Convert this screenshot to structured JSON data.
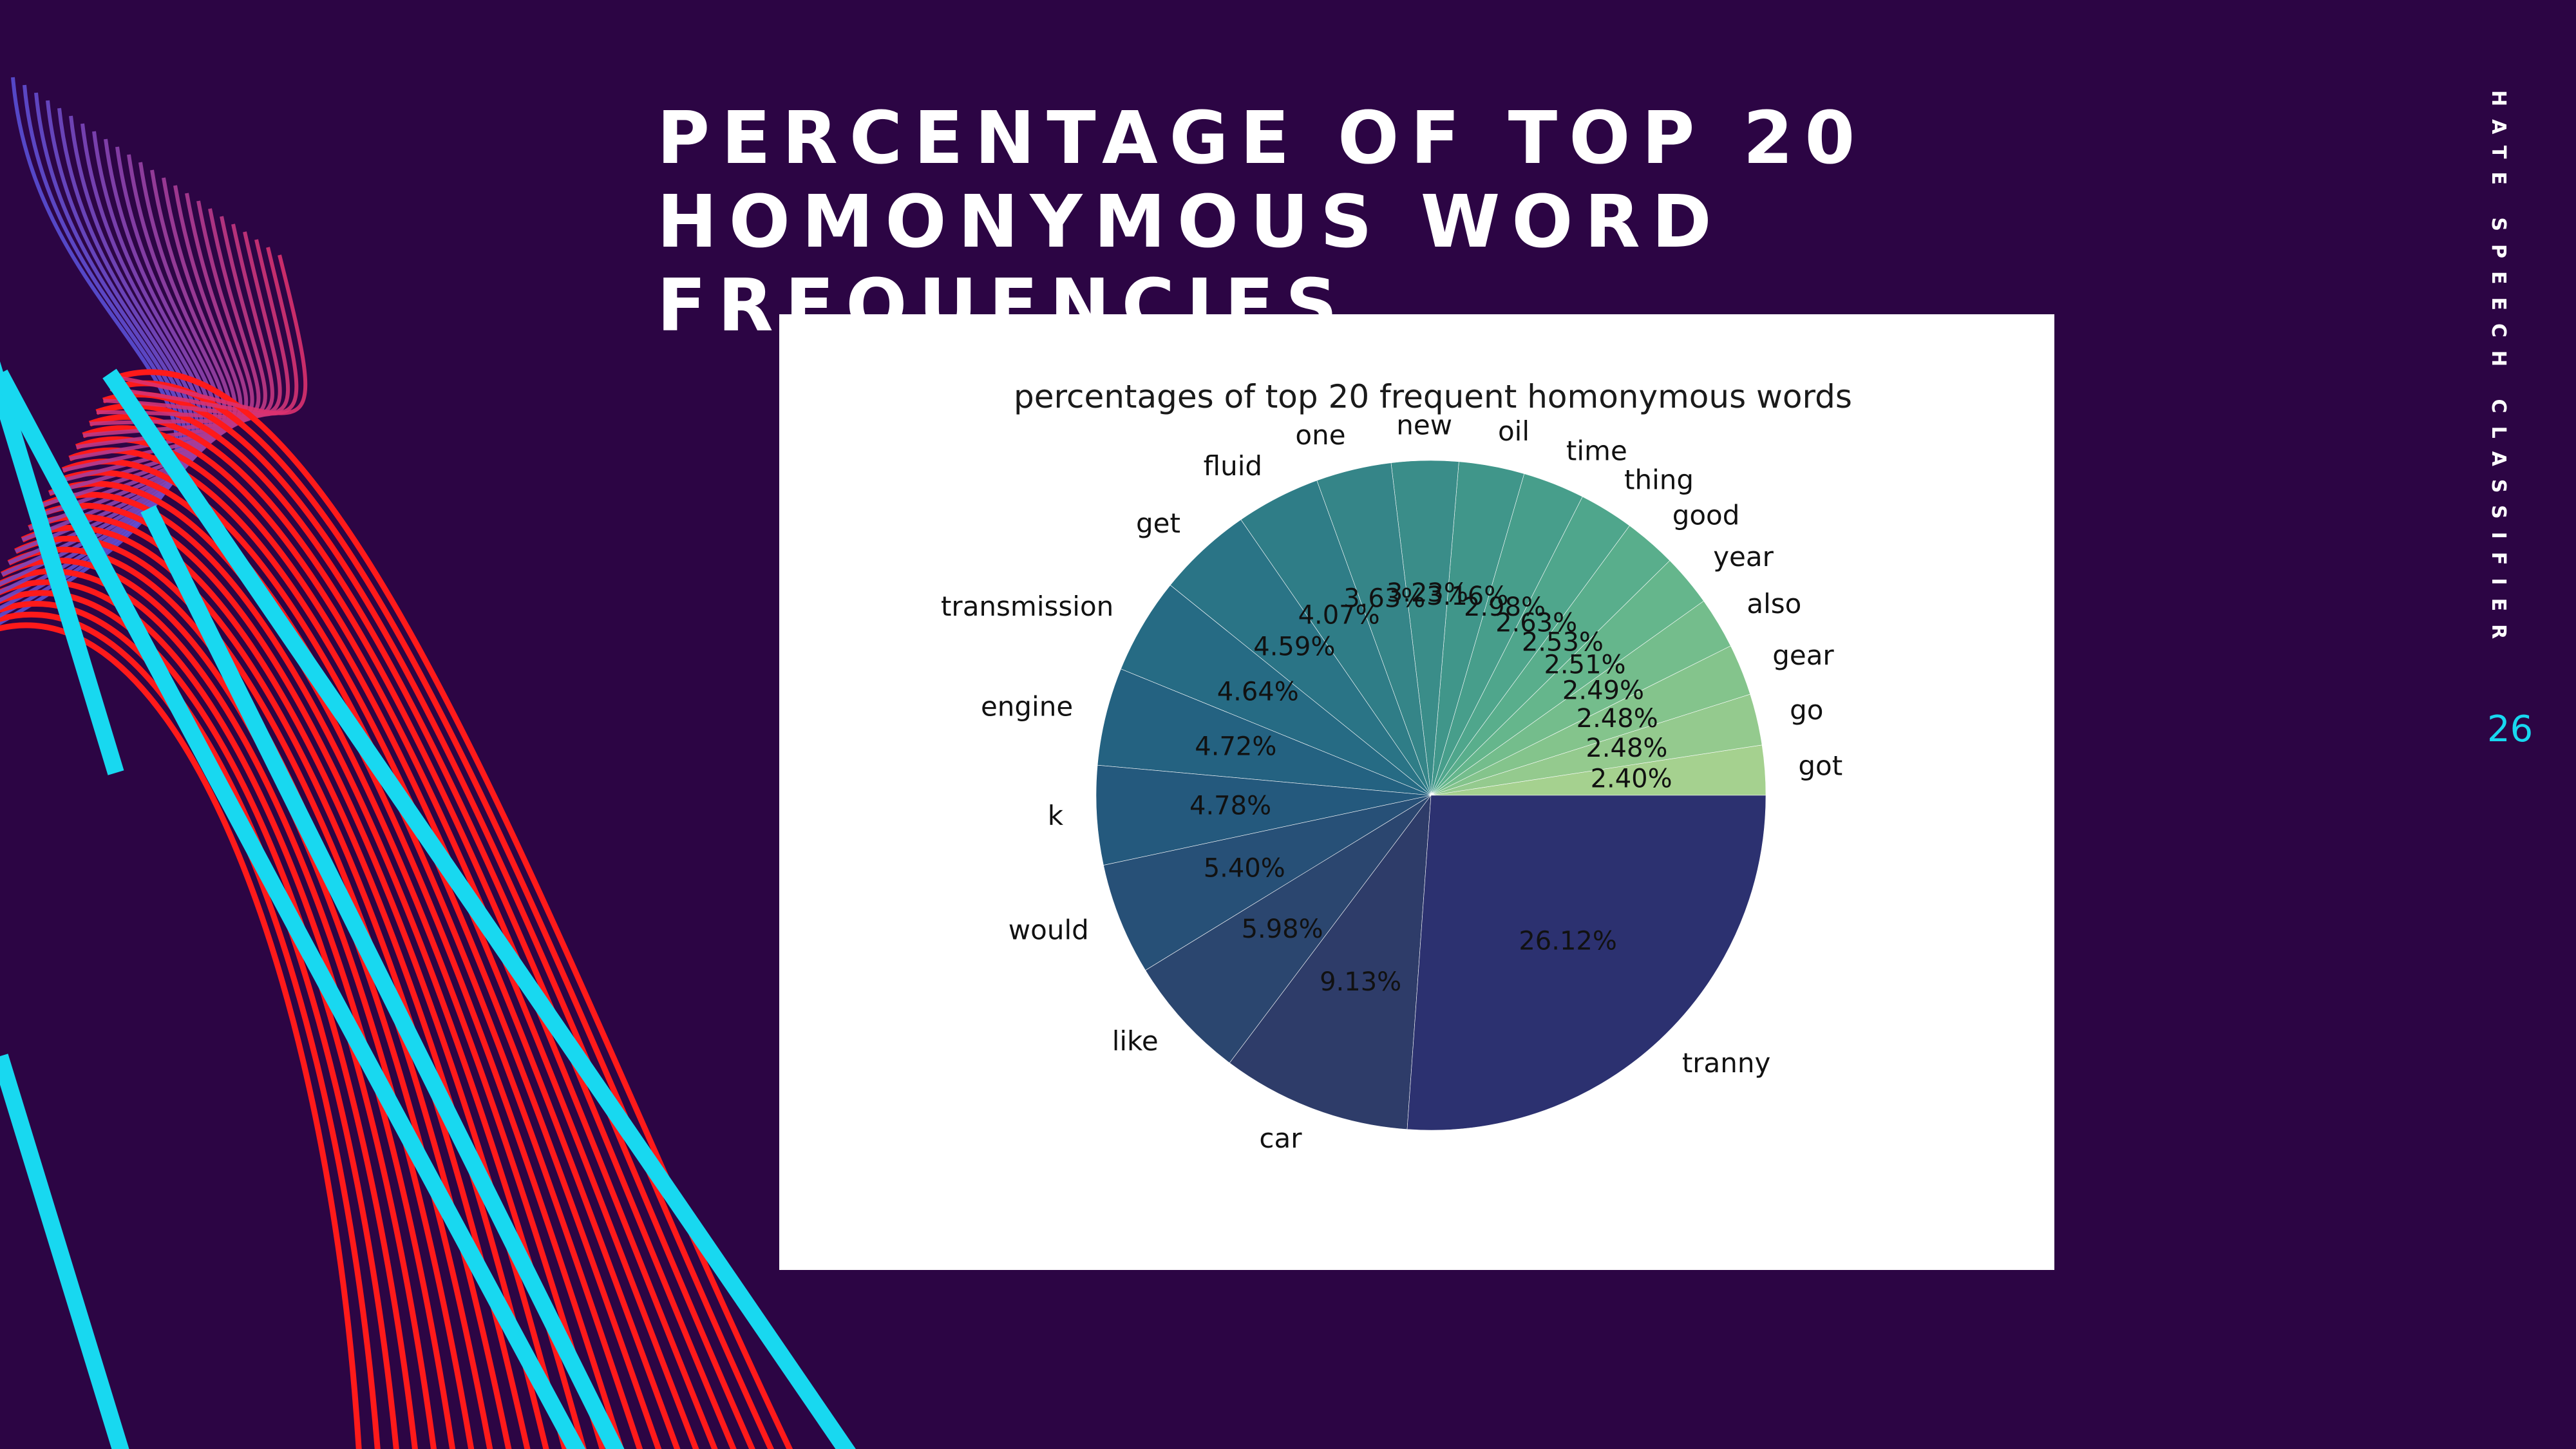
{
  "slide": {
    "title_line1": "PERCENTAGE OF TOP 20",
    "title_line2": "HOMONYMOUS WORD FREQUENCIES",
    "side_label": "HATE SPEECH CLASSIFIER",
    "page_number": "26"
  },
  "colors": {
    "background": "#2c0544",
    "accent_cyan": "#18d8f0",
    "accent_red": "#ff1a1a",
    "panel": "#ffffff"
  },
  "chart_data": {
    "type": "pie",
    "title": "percentages of top 20 frequent homonymous words",
    "start_angle_deg": 0,
    "direction": "counterclockwise",
    "labels": [
      "got",
      "go",
      "gear",
      "also",
      "year",
      "good",
      "thing",
      "time",
      "oil",
      "new",
      "one",
      "fluid",
      "get",
      "transmission",
      "engine",
      "k",
      "would",
      "like",
      "car",
      "tranny"
    ],
    "values": [
      2.4,
      2.48,
      2.48,
      2.49,
      2.51,
      2.53,
      2.63,
      2.98,
      3.16,
      3.23,
      3.63,
      4.07,
      4.59,
      4.64,
      4.72,
      4.78,
      5.4,
      5.98,
      9.13,
      26.12
    ],
    "percent_labels": [
      "2.40%",
      "2.48%",
      "2.48%",
      "2.49%",
      "2.51%",
      "2.53%",
      "2.63%",
      "2.98%",
      "3.16%",
      "3.23%",
      "3.63%",
      "4.07%",
      "4.59%",
      "4.64%",
      "4.72%",
      "4.78%",
      "5.40%",
      "5.98%",
      "9.13%",
      "26.12%"
    ],
    "colors": [
      "#a5d18f",
      "#94ca8e",
      "#84c48c",
      "#74bd8c",
      "#65b68c",
      "#59ae8c",
      "#4fa68c",
      "#479e8b",
      "#40968a",
      "#3a8d89",
      "#358588",
      "#2f7d87",
      "#2a7486",
      "#266b84",
      "#246281",
      "#24597d",
      "#275077",
      "#2b466f",
      "#2e3c69",
      "#2c3170"
    ],
    "legend": "none"
  }
}
